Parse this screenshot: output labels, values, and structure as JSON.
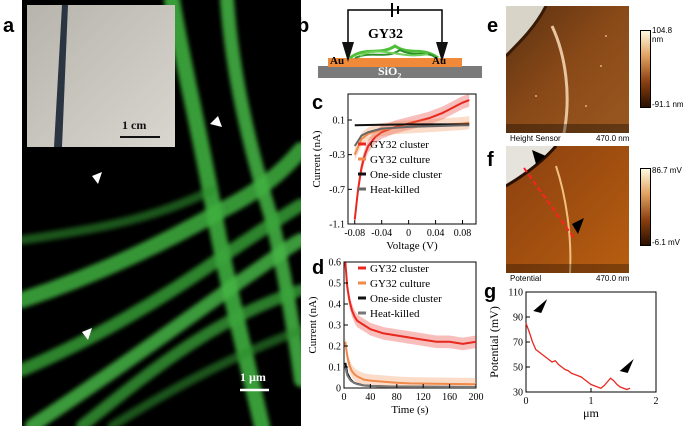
{
  "panels": {
    "a": {
      "letter": "a",
      "inset_scale": "1 cm",
      "main_scale": "1 µm"
    },
    "b": {
      "letter": "b",
      "label_sample": "GY32",
      "label_electrode_left": "Au",
      "label_electrode_right": "Au",
      "label_substrate_base": "SiO",
      "label_substrate_sub": "2"
    },
    "c": {
      "letter": "c"
    },
    "d": {
      "letter": "d"
    },
    "e": {
      "letter": "e",
      "caption_left": "Height Sensor",
      "caption_right": "470.0 nm",
      "scale_max": "104.8 nm",
      "scale_min": "-91.1 nm"
    },
    "f": {
      "letter": "f",
      "caption_left": "Potential",
      "caption_right": "470.0 nm",
      "scale_max": "86.7 mV",
      "scale_min": "-6.1 mV"
    },
    "g": {
      "letter": "g"
    }
  },
  "chart_data": [
    {
      "id": "c",
      "type": "line",
      "xlabel": "Voltage (V)",
      "ylabel": "Current (nA)",
      "xlim": [
        -0.09,
        0.1
      ],
      "ylim": [
        -1.1,
        0.4
      ],
      "xticks": [
        -0.08,
        -0.04,
        0,
        0.04,
        0.08
      ],
      "xtick_labels": [
        "-0.08",
        "-0.04",
        "0",
        "0.04",
        "0.08"
      ],
      "yticks": [
        -1.1,
        -0.7,
        -0.3,
        0.1
      ],
      "ytick_labels": [
        "-1.1",
        "-0.7",
        "-0.3",
        "0.1"
      ],
      "series": [
        {
          "name": "GY32 cluster",
          "color": "#e8281e",
          "band": true,
          "x": [
            -0.08,
            -0.075,
            -0.07,
            -0.065,
            -0.06,
            -0.05,
            -0.04,
            -0.03,
            -0.02,
            -0.01,
            0,
            0.01,
            0.02,
            0.03,
            0.04,
            0.05,
            0.06,
            0.07,
            0.08,
            0.09
          ],
          "y": [
            -1.05,
            -0.7,
            -0.45,
            -0.3,
            -0.2,
            -0.1,
            -0.04,
            -0.01,
            0.02,
            0.04,
            0.06,
            0.08,
            0.1,
            0.12,
            0.15,
            0.18,
            0.22,
            0.26,
            0.3,
            0.33
          ]
        },
        {
          "name": "GY32 culture",
          "color": "#f08a4b",
          "band": true,
          "x": [
            -0.08,
            -0.07,
            -0.06,
            -0.05,
            -0.04,
            -0.02,
            0,
            0.02,
            0.04,
            0.06,
            0.08,
            0.09
          ],
          "y": [
            -0.3,
            -0.12,
            -0.06,
            -0.03,
            -0.01,
            0.01,
            0.02,
            0.03,
            0.04,
            0.05,
            0.06,
            0.07
          ]
        },
        {
          "name": "One-side cluster",
          "color": "#111111",
          "band": false,
          "x": [
            -0.08,
            -0.04,
            0,
            0.04,
            0.08,
            0.09
          ],
          "y": [
            0.04,
            0.045,
            0.05,
            0.05,
            0.05,
            0.05
          ]
        },
        {
          "name": "Heat-killed",
          "color": "#666666",
          "band": false,
          "x": [
            -0.08,
            -0.07,
            -0.06,
            -0.05,
            -0.04,
            0,
            0.04,
            0.08,
            0.09
          ],
          "y": [
            -0.2,
            -0.08,
            -0.04,
            -0.02,
            0.0,
            0.02,
            0.03,
            0.04,
            0.04
          ]
        }
      ]
    },
    {
      "id": "d",
      "type": "line",
      "xlabel": "Time (s)",
      "ylabel": "Current (nA)",
      "xlim": [
        0,
        200
      ],
      "ylim": [
        0,
        0.6
      ],
      "xticks": [
        0,
        40,
        80,
        120,
        160,
        200
      ],
      "xtick_labels": [
        "0",
        "40",
        "80",
        "120",
        "160",
        "200"
      ],
      "yticks": [
        0,
        0.1,
        0.2,
        0.3,
        0.4,
        0.5,
        0.6
      ],
      "ytick_labels": [
        "0",
        "0.1",
        "0.2",
        "0.3",
        "0.4",
        "0.5",
        "0.6"
      ],
      "series": [
        {
          "name": "GY32 cluster",
          "color": "#e8281e",
          "band": true,
          "x": [
            2,
            5,
            8,
            12,
            16,
            20,
            30,
            40,
            50,
            60,
            80,
            100,
            120,
            140,
            160,
            180,
            200
          ],
          "y": [
            0.6,
            0.48,
            0.42,
            0.37,
            0.34,
            0.32,
            0.3,
            0.28,
            0.27,
            0.26,
            0.25,
            0.24,
            0.23,
            0.22,
            0.22,
            0.21,
            0.22
          ]
        },
        {
          "name": "GY32 culture",
          "color": "#f08a4b",
          "band": true,
          "x": [
            2,
            5,
            8,
            12,
            16,
            20,
            30,
            40,
            60,
            80,
            100,
            140,
            200
          ],
          "y": [
            0.22,
            0.15,
            0.11,
            0.08,
            0.065,
            0.055,
            0.04,
            0.035,
            0.03,
            0.025,
            0.022,
            0.02,
            0.018
          ]
        },
        {
          "name": "One-side cluster",
          "color": "#111111",
          "band": false,
          "x": [
            2,
            5,
            10,
            15,
            20,
            30,
            40,
            60,
            100,
            200
          ],
          "y": [
            0.12,
            0.07,
            0.04,
            0.025,
            0.02,
            0.012,
            0.01,
            0.008,
            0.006,
            0.005
          ]
        },
        {
          "name": "Heat-killed",
          "color": "#777777",
          "band": false,
          "x": [
            2,
            5,
            10,
            15,
            20,
            30,
            40,
            60,
            100,
            200
          ],
          "y": [
            0.1,
            0.06,
            0.035,
            0.025,
            0.018,
            0.012,
            0.01,
            0.008,
            0.006,
            0.005
          ]
        }
      ]
    },
    {
      "id": "g",
      "type": "line",
      "xlabel": "μm",
      "ylabel": "Potential (mV)",
      "xlim": [
        0,
        2
      ],
      "ylim": [
        30,
        110
      ],
      "xticks": [
        0,
        1,
        2
      ],
      "xtick_labels": [
        "0",
        "1",
        "2"
      ],
      "yticks": [
        30,
        50,
        70,
        90,
        110
      ],
      "ytick_labels": [
        "30",
        "50",
        "70",
        "90",
        "110"
      ],
      "series": [
        {
          "color": "#e8281e",
          "x": [
            0,
            0.05,
            0.1,
            0.15,
            0.2,
            0.25,
            0.3,
            0.35,
            0.4,
            0.45,
            0.5,
            0.55,
            0.6,
            0.65,
            0.7,
            0.75,
            0.8,
            0.85,
            0.9,
            0.95,
            1.0,
            1.05,
            1.1,
            1.15,
            1.2,
            1.25,
            1.3,
            1.35,
            1.4,
            1.45,
            1.5,
            1.55,
            1.6
          ],
          "y": [
            85,
            78,
            70,
            64,
            62,
            60,
            58,
            56,
            54,
            55,
            52,
            50,
            48,
            47,
            45,
            44,
            43,
            42,
            40,
            38,
            36,
            35,
            34,
            33,
            35,
            38,
            41,
            39,
            36,
            34,
            33,
            32,
            33
          ]
        }
      ]
    }
  ]
}
